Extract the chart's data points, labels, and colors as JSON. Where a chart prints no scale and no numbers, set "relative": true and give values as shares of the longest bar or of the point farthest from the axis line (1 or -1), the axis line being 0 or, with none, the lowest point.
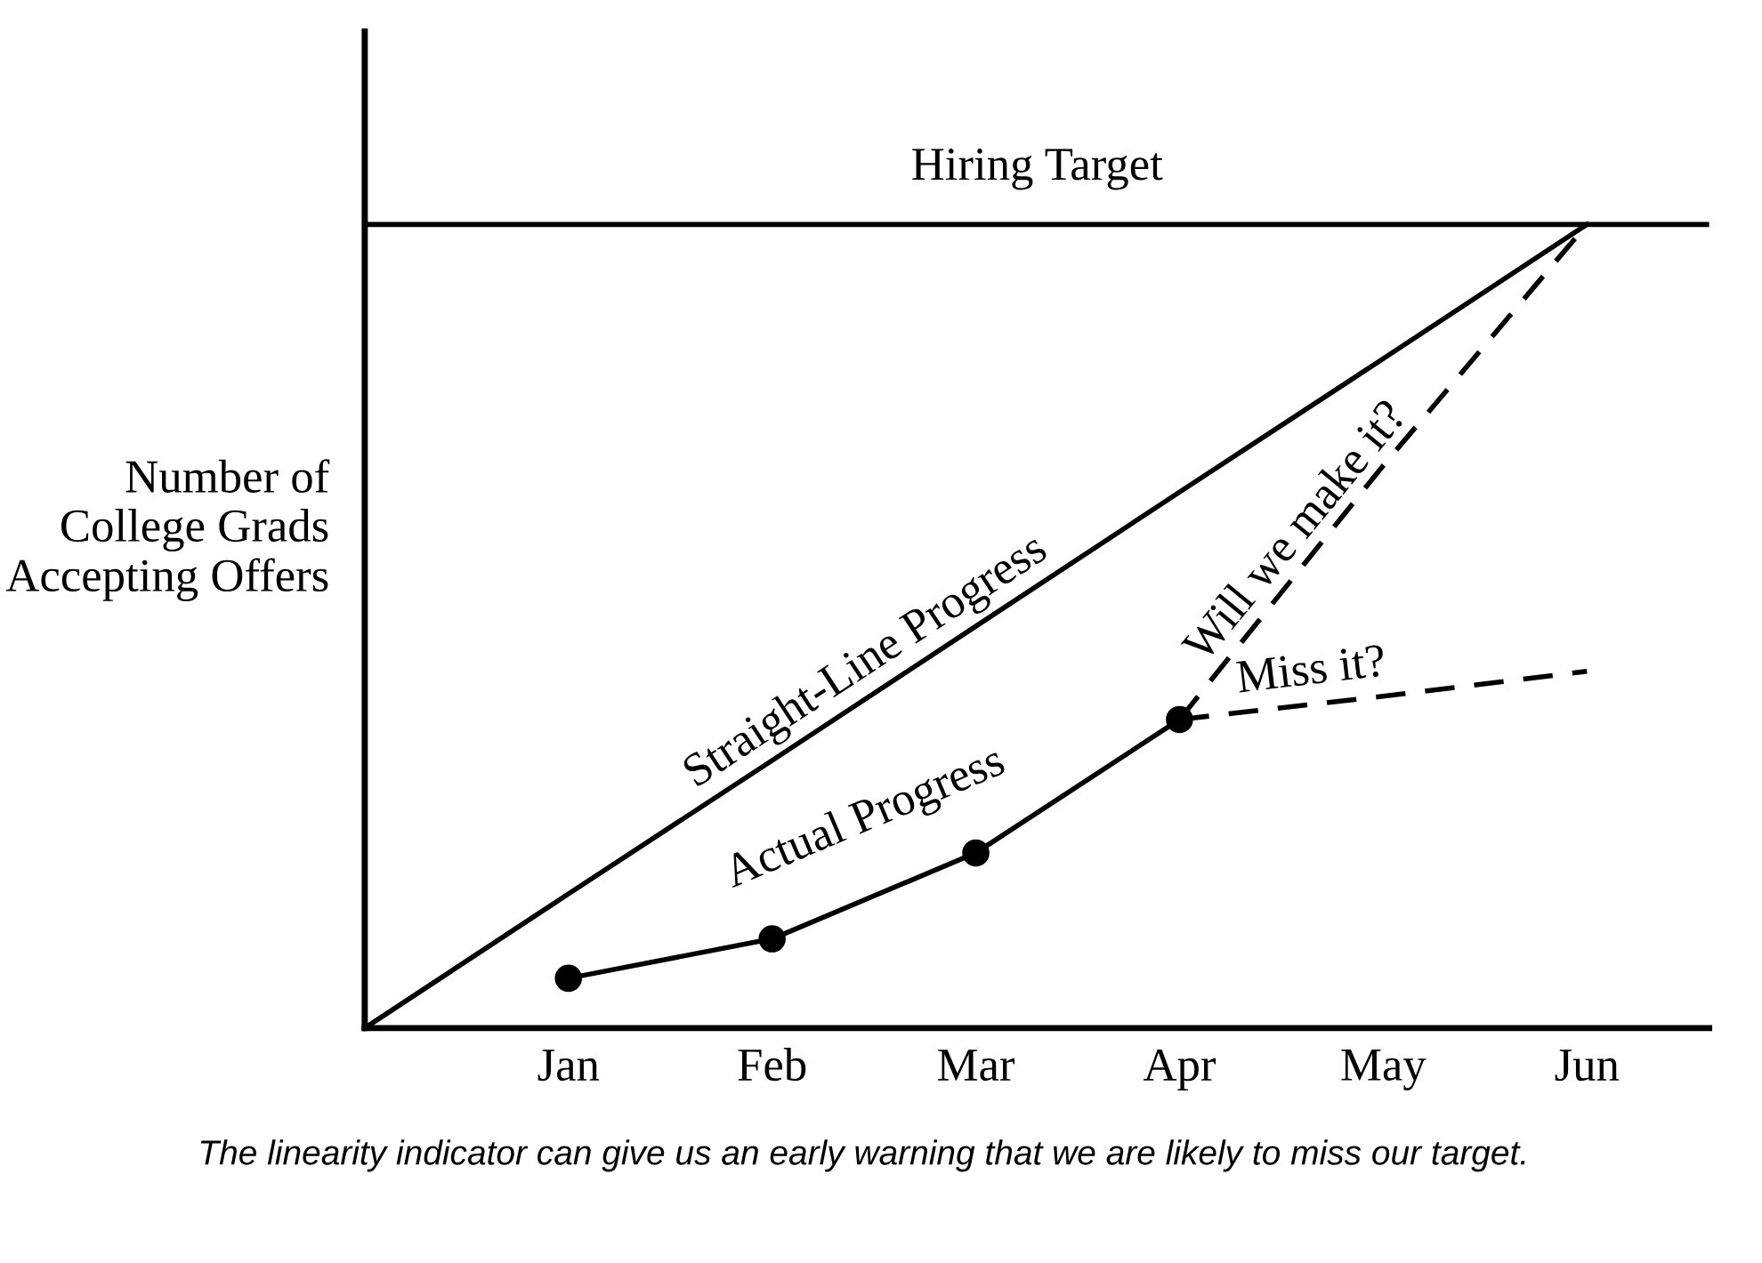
{
  "chart_data": {
    "type": "line",
    "relative": true,
    "ylabel": "Number of College Grads Accepting Offers",
    "categories": [
      null,
      "Jan",
      "Feb",
      "Mar",
      "Apr",
      "May",
      "Jun"
    ],
    "series": [
      {
        "name": "Straight-Line Progress",
        "color": "#000000",
        "values": [
          0,
          0.167,
          0.333,
          0.5,
          0.667,
          0.833,
          1
        ],
        "line_style": "solid",
        "marker": "none"
      },
      {
        "name": "Actual Progress",
        "color": "#000000",
        "values": [
          null,
          0.062,
          0.111,
          0.218,
          0.384,
          null,
          null
        ],
        "line_style": "solid",
        "marker": "circle"
      },
      {
        "name": "Will we make it?",
        "color": "#000000",
        "values": [
          null,
          null,
          null,
          null,
          0.384,
          0.7,
          1
        ],
        "line_style": "dashed",
        "marker": "none"
      },
      {
        "name": "Miss it?",
        "color": "#000000",
        "values": [
          null,
          null,
          null,
          null,
          0.384,
          0.413,
          0.444
        ],
        "line_style": "dashed",
        "marker": "none"
      }
    ],
    "ref_lines": [
      {
        "axis": "y",
        "value": 1,
        "label": "Hiring Target",
        "color": "#000000",
        "line_style": "solid"
      }
    ],
    "annotations": [
      "The linearity indicator can give us an early warning that we are likely to miss our target."
    ],
    "legend": false,
    "grid": false
  }
}
